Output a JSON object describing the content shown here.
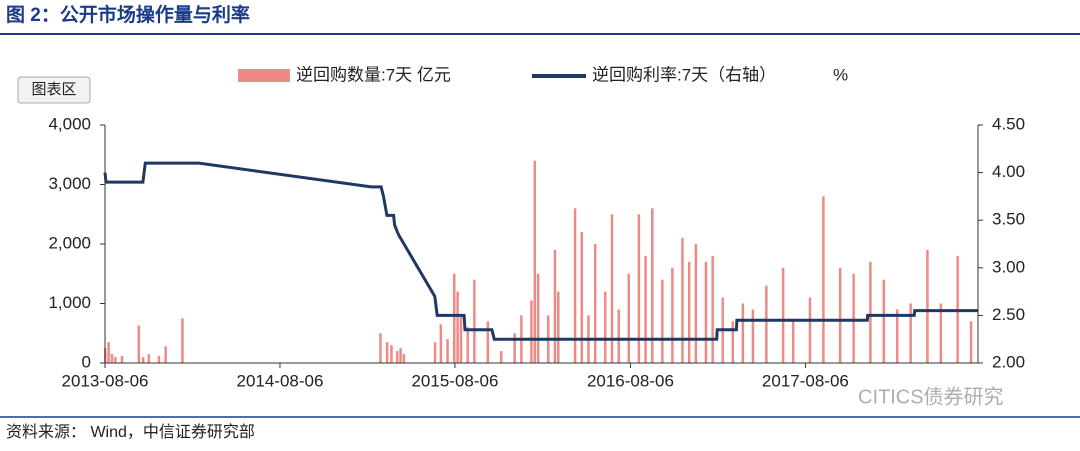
{
  "header": {
    "title": "图 2：公开市场操作量与利率",
    "button": "图表区"
  },
  "chart_data": {
    "type": "bar-line",
    "xlim": [
      "2013-08-06",
      "2018-08-01"
    ],
    "xticks": [
      "2013-08-06",
      "2014-08-06",
      "2015-08-06",
      "2016-08-06",
      "2017-08-06"
    ],
    "ylim": [
      0,
      4000
    ],
    "yticks": [
      0,
      {
        "value": 1000,
        "label": "1,000"
      },
      {
        "value": 2000,
        "label": "2,000"
      },
      {
        "value": 3000,
        "label": "3,000"
      },
      {
        "value": 4000,
        "label": "4,000"
      }
    ],
    "y2lim": [
      2.0,
      4.5
    ],
    "y2ticks": [
      {
        "value": 2,
        "label": "2.00"
      },
      {
        "value": 2.5,
        "label": "2.50"
      },
      {
        "value": 3,
        "label": "3.00"
      },
      {
        "value": 3.5,
        "label": "3.50"
      },
      {
        "value": 4,
        "label": "4.00"
      },
      {
        "value": 4.5,
        "label": "4.50"
      }
    ],
    "legend_extra": "%",
    "series": [
      {
        "name": "逆回购数量:7天 亿元",
        "type": "bar",
        "color": "#ee8a86",
        "x": [
          "2013-08-06",
          "2013-08-13",
          "2013-08-20",
          "2013-08-27",
          "2013-09-10",
          "2013-10-15",
          "2013-10-24",
          "2013-11-05",
          "2013-11-26",
          "2013-12-10",
          "2014-01-14",
          "2015-03-03",
          "2015-03-17",
          "2015-03-26",
          "2015-04-07",
          "2015-04-14",
          "2015-04-21",
          "2015-06-25",
          "2015-07-07",
          "2015-07-21",
          "2015-08-04",
          "2015-08-11",
          "2015-08-18",
          "2015-09-01",
          "2015-09-15",
          "2015-10-13",
          "2015-11-10",
          "2015-12-08",
          "2015-12-22",
          "2016-01-12",
          "2016-01-19",
          "2016-01-26",
          "2016-02-16",
          "2016-03-01",
          "2016-03-08",
          "2016-04-12",
          "2016-04-26",
          "2016-05-10",
          "2016-05-24",
          "2016-06-14",
          "2016-06-28",
          "2016-07-12",
          "2016-08-02",
          "2016-08-23",
          "2016-09-06",
          "2016-09-20",
          "2016-10-11",
          "2016-11-01",
          "2016-11-22",
          "2016-12-06",
          "2016-12-20",
          "2017-01-10",
          "2017-01-24",
          "2017-02-14",
          "2017-03-07",
          "2017-03-28",
          "2017-04-18",
          "2017-05-16",
          "2017-06-20",
          "2017-07-11",
          "2017-08-15",
          "2017-09-12",
          "2017-10-17",
          "2017-11-14",
          "2017-12-19",
          "2018-01-16",
          "2018-02-13",
          "2018-03-13",
          "2018-04-17",
          "2018-05-15",
          "2018-06-19",
          "2018-07-17"
        ],
        "values": [
          250,
          350,
          150,
          100,
          120,
          630,
          100,
          150,
          120,
          280,
          750,
          500,
          350,
          300,
          200,
          250,
          150,
          350,
          650,
          400,
          1500,
          1200,
          800,
          600,
          1400,
          700,
          200,
          500,
          800,
          1050,
          3400,
          1500,
          800,
          1900,
          1200,
          2600,
          2200,
          800,
          2000,
          1200,
          2500,
          900,
          1500,
          2500,
          1800,
          2600,
          1400,
          1600,
          2100,
          1700,
          2000,
          1700,
          1800,
          1100,
          700,
          1000,
          900,
          1300,
          1600,
          700,
          1100,
          2800,
          1600,
          1500,
          1700,
          1400,
          900,
          1000,
          1900,
          1000,
          1800,
          700
        ]
      },
      {
        "name": "逆回购利率:7天（右轴）",
        "type": "line",
        "axis": "y2",
        "color": "#1f3864",
        "x": [
          "2013-08-06",
          "2013-08-08",
          "2013-10-24",
          "2013-10-29",
          "2014-02-18",
          "2015-02-12",
          "2015-03-05",
          "2015-03-10",
          "2015-03-17",
          "2015-03-31",
          "2015-04-02",
          "2015-04-10",
          "2015-06-25",
          "2015-06-30",
          "2015-08-25",
          "2015-08-27",
          "2015-10-22",
          "2015-10-27",
          "2017-02-02",
          "2017-02-03",
          "2017-03-15",
          "2017-03-16",
          "2017-12-13",
          "2017-12-14",
          "2018-03-21",
          "2018-03-22",
          "2018-08-01"
        ],
        "values": [
          4.0,
          3.9,
          3.9,
          4.1,
          4.1,
          3.85,
          3.85,
          3.75,
          3.55,
          3.55,
          3.45,
          3.35,
          2.7,
          2.5,
          2.5,
          2.35,
          2.35,
          2.25,
          2.25,
          2.35,
          2.35,
          2.45,
          2.45,
          2.5,
          2.5,
          2.55,
          2.55
        ]
      }
    ]
  },
  "footer": {
    "source": "资料来源： Wind，中信证券研究部",
    "watermark": "CITICS债券研究"
  }
}
